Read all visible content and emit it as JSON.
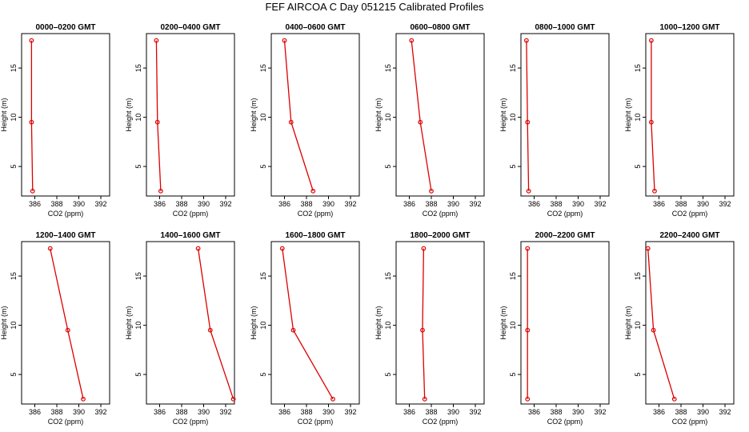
{
  "title": "FEF AIRCOA C  Day 051215  Calibrated Profiles",
  "colors": {
    "series": "#dd0000",
    "axis": "#000000"
  },
  "chart_data": {
    "type": "line",
    "layout": "2x6 small multiples",
    "xlabel": "CO2 (ppm)",
    "ylabel": "Height (m)",
    "xlim": [
      384.8,
      392.8
    ],
    "ylim": [
      2.0,
      18.5
    ],
    "xticks": [
      386,
      388,
      390,
      392
    ],
    "yticks": [
      5,
      10,
      15
    ],
    "heights": [
      17.8,
      9.5,
      2.5
    ],
    "panels": [
      {
        "title": "0000–0200 GMT",
        "co2": [
          385.7,
          385.7,
          385.8
        ]
      },
      {
        "title": "0200–0400 GMT",
        "co2": [
          385.7,
          385.8,
          386.1
        ]
      },
      {
        "title": "0400–0600 GMT",
        "co2": [
          386.0,
          386.6,
          388.6
        ]
      },
      {
        "title": "0600–0800 GMT",
        "co2": [
          386.2,
          387.0,
          388.0
        ]
      },
      {
        "title": "0800–1000 GMT",
        "co2": [
          385.3,
          385.4,
          385.5
        ]
      },
      {
        "title": "1000–1200 GMT",
        "co2": [
          385.3,
          385.3,
          385.6
        ]
      },
      {
        "title": "1200–1400 GMT",
        "co2": [
          387.4,
          389.0,
          390.4
        ]
      },
      {
        "title": "1400–1600 GMT",
        "co2": [
          389.5,
          390.6,
          392.7
        ]
      },
      {
        "title": "1600–1800 GMT",
        "co2": [
          385.8,
          386.8,
          390.4
        ]
      },
      {
        "title": "1800–2000 GMT",
        "co2": [
          387.3,
          387.2,
          387.4
        ]
      },
      {
        "title": "2000–2200 GMT",
        "co2": [
          385.4,
          385.4,
          385.4
        ]
      },
      {
        "title": "2200–2400 GMT",
        "co2": [
          385.0,
          385.5,
          387.4
        ]
      }
    ]
  }
}
